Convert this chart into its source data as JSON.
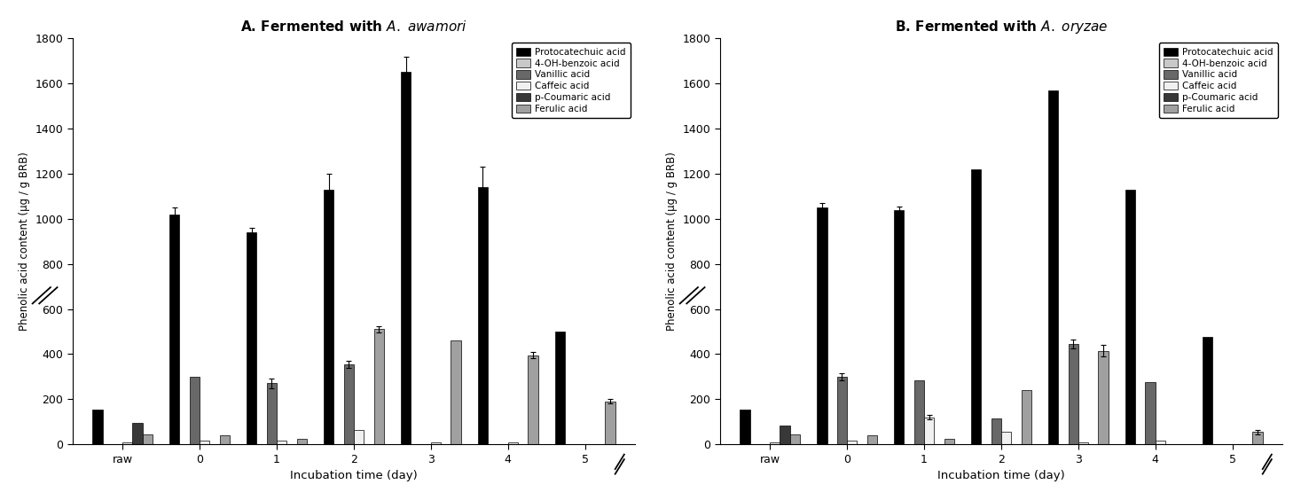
{
  "title_A": "A. Fermented with $\\mathit{A.\\ awamori}$",
  "title_B": "B. Fermented with $\\mathit{A.\\ oryzae}$",
  "xlabel": "Incubation time (day)",
  "ylabel": "Phenolic acid content (μg / g BRB)",
  "categories": [
    "raw",
    "0",
    "1",
    "2",
    "3",
    "4",
    "5"
  ],
  "legend_labels": [
    "Protocatechuic acid",
    "4-OH-benzoic acid",
    "Vanillic acid",
    "Caffeic acid",
    "p-Coumaric acid",
    "Ferulic acid"
  ],
  "bar_colors": [
    "#000000",
    "#c8c8c8",
    "#686868",
    "#f0f0f0",
    "#383838",
    "#a0a0a0"
  ],
  "ylim": [
    0,
    1800
  ],
  "yticks": [
    0,
    200,
    400,
    600,
    800,
    1000,
    1200,
    1400,
    1600,
    1800
  ],
  "A_series": [
    [
      155,
      1020,
      940,
      1130,
      1650,
      1140,
      500
    ],
    [
      0,
      0,
      0,
      0,
      0,
      0,
      0
    ],
    [
      0,
      300,
      270,
      355,
      0,
      0,
      0
    ],
    [
      10,
      15,
      15,
      65,
      10,
      10,
      0
    ],
    [
      95,
      0,
      0,
      0,
      0,
      0,
      0
    ],
    [
      45,
      40,
      25,
      510,
      460,
      395,
      190
    ]
  ],
  "A_err": [
    [
      0,
      30,
      20,
      70,
      70,
      90,
      0
    ],
    [
      0,
      0,
      0,
      0,
      0,
      0,
      0
    ],
    [
      0,
      0,
      20,
      15,
      0,
      0,
      0
    ],
    [
      0,
      0,
      0,
      0,
      0,
      0,
      0
    ],
    [
      0,
      0,
      0,
      0,
      0,
      0,
      0
    ],
    [
      0,
      0,
      0,
      15,
      0,
      15,
      10
    ]
  ],
  "B_series": [
    [
      155,
      1050,
      1040,
      1220,
      1570,
      1130,
      475
    ],
    [
      0,
      0,
      0,
      0,
      0,
      0,
      0
    ],
    [
      0,
      300,
      285,
      115,
      445,
      275,
      0
    ],
    [
      10,
      15,
      120,
      55,
      10,
      15,
      0
    ],
    [
      85,
      0,
      0,
      0,
      0,
      0,
      0
    ],
    [
      45,
      40,
      25,
      240,
      415,
      0,
      55
    ]
  ],
  "B_err": [
    [
      0,
      20,
      15,
      0,
      0,
      0,
      0
    ],
    [
      0,
      0,
      0,
      0,
      0,
      0,
      0
    ],
    [
      0,
      15,
      0,
      0,
      20,
      0,
      0
    ],
    [
      0,
      0,
      10,
      0,
      0,
      0,
      0
    ],
    [
      0,
      0,
      0,
      0,
      0,
      0,
      0
    ],
    [
      0,
      0,
      0,
      0,
      25,
      0,
      10
    ]
  ]
}
